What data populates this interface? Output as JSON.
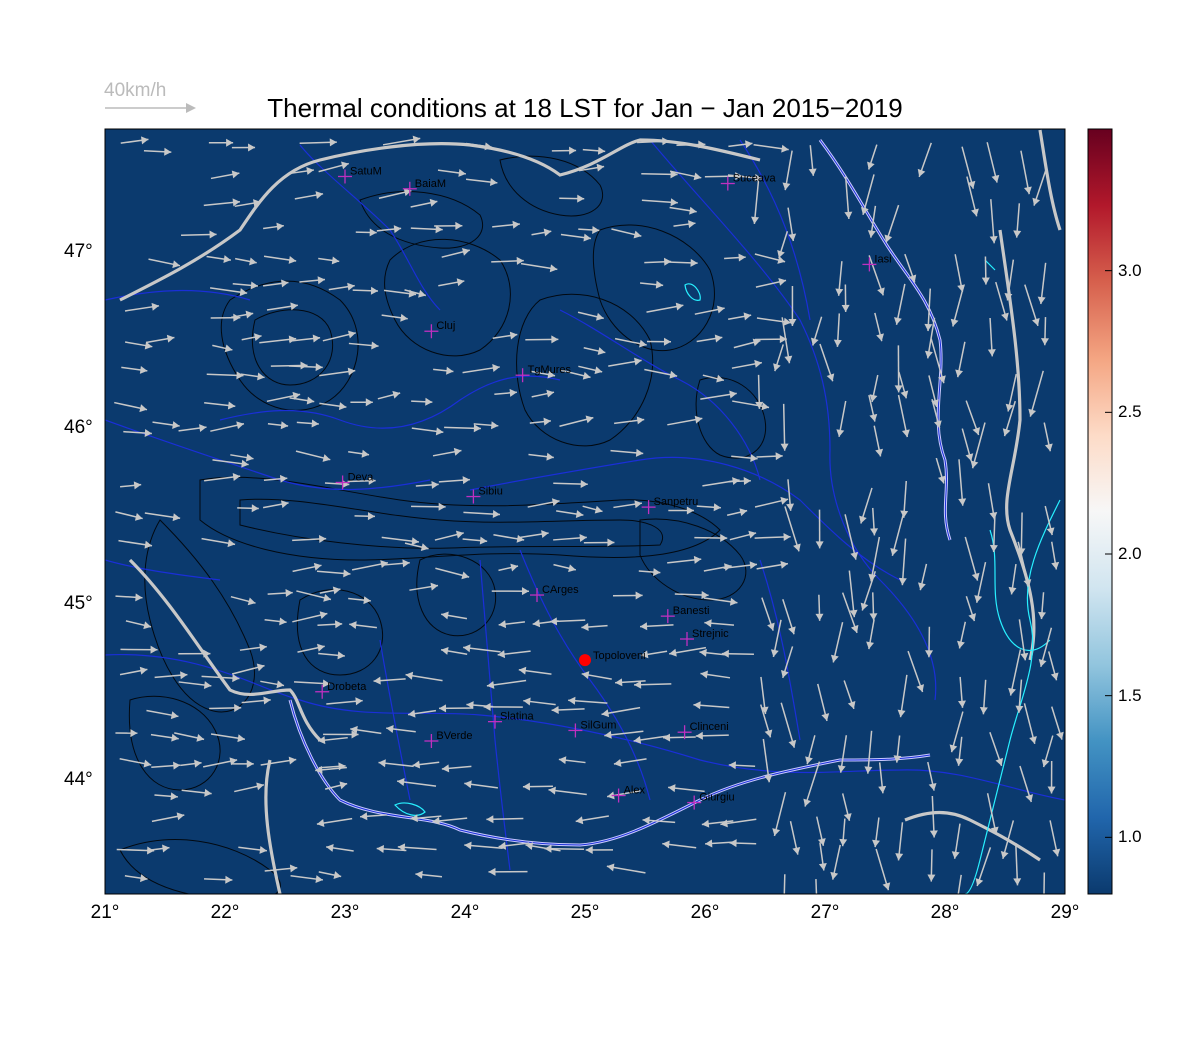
{
  "title": "Thermal conditions at 18 LST for Jan − Jan  2015−2019",
  "reference_vector": {
    "label": "40km/h",
    "color": "#bbbbbb",
    "speed_kmh": 40
  },
  "map": {
    "lon_range": [
      21,
      29
    ],
    "lat_range": [
      43.35,
      47.7
    ],
    "background_color": "#0b3a6e",
    "river_color": "#1a2fd8",
    "border_color": "#c8c8c8",
    "lake_color": "#28f0ff",
    "contour_color": "#000000",
    "marker_color": "#c030c0"
  },
  "x_ticks": [
    "21°",
    "22°",
    "23°",
    "24°",
    "25°",
    "26°",
    "27°",
    "28°",
    "29°"
  ],
  "y_ticks": [
    "44°",
    "45°",
    "46°",
    "47°"
  ],
  "colorbar": {
    "ticks": [
      "1.0",
      "1.5",
      "2.0",
      "2.5",
      "3.0"
    ],
    "range": [
      0.8,
      3.5
    ],
    "colors": [
      "#0b3a6e",
      "#2166ac",
      "#4393c3",
      "#92c5de",
      "#d1e5f0",
      "#f7f7f7",
      "#fddbc7",
      "#f4a582",
      "#d6604d",
      "#b2182b",
      "#67001f"
    ]
  },
  "cities": [
    {
      "name": "SatuM",
      "lon": 23.0,
      "lat": 47.43
    },
    {
      "name": "BaiaM",
      "lon": 23.54,
      "lat": 47.36
    },
    {
      "name": "Suceava",
      "lon": 26.19,
      "lat": 47.39
    },
    {
      "name": "Iasi",
      "lon": 27.37,
      "lat": 46.93
    },
    {
      "name": "Cluj",
      "lon": 23.72,
      "lat": 46.55
    },
    {
      "name": "TgMures",
      "lon": 24.48,
      "lat": 46.3
    },
    {
      "name": "Deva",
      "lon": 22.98,
      "lat": 45.69
    },
    {
      "name": "Sibiu",
      "lon": 24.07,
      "lat": 45.61
    },
    {
      "name": "Sanpetru",
      "lon": 25.53,
      "lat": 45.55
    },
    {
      "name": "CArges",
      "lon": 24.6,
      "lat": 45.05
    },
    {
      "name": "Banesti",
      "lon": 25.69,
      "lat": 44.93
    },
    {
      "name": "Strejnic",
      "lon": 25.85,
      "lat": 44.8
    },
    {
      "name": "Drobeta",
      "lon": 22.81,
      "lat": 44.5
    },
    {
      "name": "Slatina",
      "lon": 24.25,
      "lat": 44.33
    },
    {
      "name": "SilGum",
      "lon": 24.92,
      "lat": 44.28
    },
    {
      "name": "Clinceni",
      "lon": 25.83,
      "lat": 44.27
    },
    {
      "name": "BVerde",
      "lon": 23.72,
      "lat": 44.22
    },
    {
      "name": "Alex",
      "lon": 25.28,
      "lat": 43.91
    },
    {
      "name": "Giurgiu",
      "lon": 25.91,
      "lat": 43.87
    }
  ],
  "highlight_site": {
    "name": "Topoloveni",
    "lon": 25.0,
    "lat": 44.68,
    "color": "#ff0000"
  }
}
